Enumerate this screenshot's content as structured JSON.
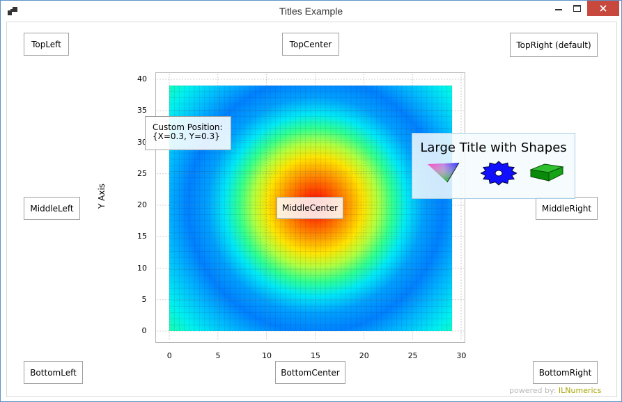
{
  "window": {
    "title": "Titles Example",
    "accent_color": "#c7493e"
  },
  "titles": {
    "top_left": "TopLeft",
    "top_center": "TopCenter",
    "top_right": "TopRight (default)",
    "middle_left": "MiddleLeft",
    "middle_center": "MiddleCenter",
    "middle_right": "MiddleRight",
    "bottom_left": "BottomLeft",
    "bottom_center": "BottomCenter",
    "bottom_right": "BottomRight",
    "custom_line1": "Custom Position:",
    "custom_line2": "{X=0.3, Y=0.3}",
    "large_title": "Large Title with Shapes"
  },
  "shapes": [
    "gradient-triangle-icon",
    "blue-gear-icon",
    "green-cube-icon"
  ],
  "axes": {
    "y_title": "Y Axis",
    "x_ticks": [
      "0",
      "5",
      "10",
      "15",
      "20",
      "25",
      "30"
    ],
    "y_ticks": [
      "0",
      "5",
      "10",
      "15",
      "20",
      "25",
      "30",
      "35",
      "40"
    ]
  },
  "chart_data": {
    "type": "heatmap",
    "title": "",
    "xlabel": "",
    "ylabel": "Y Axis",
    "xlim": [
      -1.5,
      30.5
    ],
    "ylim": [
      -1.5,
      41
    ],
    "grid": true,
    "x_range": [
      0,
      29
    ],
    "y_range": [
      0,
      39
    ],
    "center": [
      15,
      20
    ],
    "colormap": "jet",
    "pattern": "concentric rings: red at center (15,20), outward through yellow, green, cyan, blue, then cyan and green at edges"
  },
  "footer": {
    "powered_prefix": "powered by:",
    "brand": "ILNumerics"
  }
}
